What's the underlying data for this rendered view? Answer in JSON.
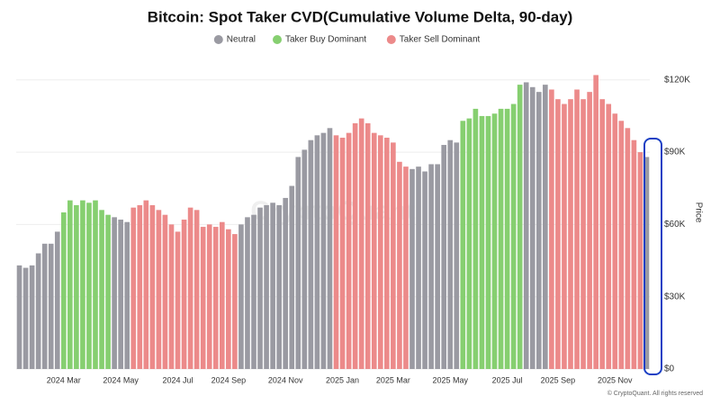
{
  "chart_data": {
    "type": "bar",
    "stacked": false,
    "title": "Bitcoin: Spot Taker CVD(Cumulative Volume Delta, 90-day)",
    "y_label": "Price",
    "watermark": "CryptoQuant",
    "copyright": "© CryptoQuant. All rights reserved",
    "grid": true,
    "legend_position": "top",
    "categories": [
      null,
      null,
      null,
      null,
      null,
      null,
      null,
      "2024 Mar",
      null,
      null,
      null,
      null,
      null,
      null,
      null,
      null,
      "2024 May",
      null,
      null,
      null,
      null,
      null,
      null,
      null,
      null,
      "2024 Jul",
      null,
      null,
      null,
      null,
      null,
      null,
      null,
      "2024 Sep",
      null,
      null,
      null,
      null,
      null,
      null,
      null,
      null,
      "2024 Nov",
      null,
      null,
      null,
      null,
      null,
      null,
      null,
      null,
      "2025 Jan",
      null,
      null,
      null,
      null,
      null,
      null,
      null,
      "2025 Mar",
      null,
      null,
      null,
      null,
      null,
      null,
      null,
      null,
      "2025 May",
      null,
      null,
      null,
      null,
      null,
      null,
      null,
      null,
      "2025 Jul",
      null,
      null,
      null,
      null,
      null,
      null,
      null,
      "2025 Sep",
      null,
      null,
      null,
      null,
      null,
      null,
      null,
      null,
      "2025 Nov",
      null,
      null,
      null,
      null,
      null
    ],
    "series": [
      {
        "name": "Neutral",
        "color": "#9a9aa2",
        "values": [
          43000,
          42000,
          43000,
          48000,
          52000,
          52000,
          57000,
          null,
          null,
          null,
          null,
          null,
          null,
          null,
          null,
          63000,
          62000,
          61000,
          null,
          null,
          null,
          null,
          null,
          null,
          null,
          null,
          null,
          null,
          null,
          null,
          null,
          null,
          null,
          null,
          null,
          60000,
          63000,
          64000,
          67000,
          68000,
          69000,
          68000,
          71000,
          76000,
          88000,
          91000,
          95000,
          97000,
          98000,
          100000,
          null,
          null,
          null,
          null,
          null,
          null,
          null,
          null,
          null,
          null,
          null,
          null,
          83000,
          84000,
          82000,
          85000,
          85000,
          93000,
          95000,
          94000,
          null,
          null,
          null,
          null,
          null,
          null,
          null,
          null,
          null,
          null,
          119000,
          117000,
          115000,
          118000,
          null,
          null,
          null,
          null,
          null,
          null,
          null,
          null,
          null,
          null,
          null,
          null,
          null,
          null,
          null,
          88000
        ]
      },
      {
        "name": "Taker Buy Dominant",
        "color": "#86cf70",
        "values": [
          null,
          null,
          null,
          null,
          null,
          null,
          null,
          65000,
          70000,
          68000,
          70000,
          69000,
          70000,
          66000,
          64000,
          null,
          null,
          null,
          null,
          null,
          null,
          null,
          null,
          null,
          null,
          null,
          null,
          null,
          null,
          null,
          null,
          null,
          null,
          null,
          null,
          null,
          null,
          null,
          null,
          null,
          null,
          null,
          null,
          null,
          null,
          null,
          null,
          null,
          null,
          null,
          null,
          null,
          null,
          null,
          null,
          null,
          null,
          null,
          null,
          null,
          null,
          null,
          null,
          null,
          null,
          null,
          null,
          null,
          null,
          null,
          103000,
          104000,
          108000,
          105000,
          105000,
          106000,
          108000,
          108000,
          110000,
          118000,
          null,
          null,
          null,
          null,
          null,
          null,
          null,
          null,
          null,
          null,
          null,
          null,
          null,
          null,
          null,
          null,
          null,
          null,
          null,
          null
        ]
      },
      {
        "name": "Taker Sell Dominant",
        "color": "#ec8a8a",
        "values": [
          null,
          null,
          null,
          null,
          null,
          null,
          null,
          null,
          null,
          null,
          null,
          null,
          null,
          null,
          null,
          null,
          null,
          null,
          67000,
          68000,
          70000,
          68000,
          66000,
          64000,
          60000,
          57000,
          62000,
          67000,
          66000,
          59000,
          60000,
          59000,
          61000,
          58000,
          56000,
          null,
          null,
          null,
          null,
          null,
          null,
          null,
          null,
          null,
          null,
          null,
          null,
          null,
          null,
          null,
          97000,
          96000,
          98000,
          102000,
          104000,
          102000,
          98000,
          97000,
          96000,
          94000,
          86000,
          84000,
          null,
          null,
          null,
          null,
          null,
          null,
          null,
          null,
          null,
          null,
          null,
          null,
          null,
          null,
          null,
          null,
          null,
          null,
          null,
          null,
          null,
          null,
          116000,
          112000,
          110000,
          112000,
          116000,
          112000,
          115000,
          122000,
          112000,
          110000,
          106000,
          103000,
          100000,
          95000,
          90000,
          null
        ]
      }
    ],
    "ylim": [
      0,
      130000
    ],
    "yticks": [
      {
        "value": 0,
        "label": "$0"
      },
      {
        "value": 30000,
        "label": "$30K"
      },
      {
        "value": 60000,
        "label": "$60K"
      },
      {
        "value": 90000,
        "label": "$90K"
      },
      {
        "value": 120000,
        "label": "$120K"
      }
    ]
  }
}
